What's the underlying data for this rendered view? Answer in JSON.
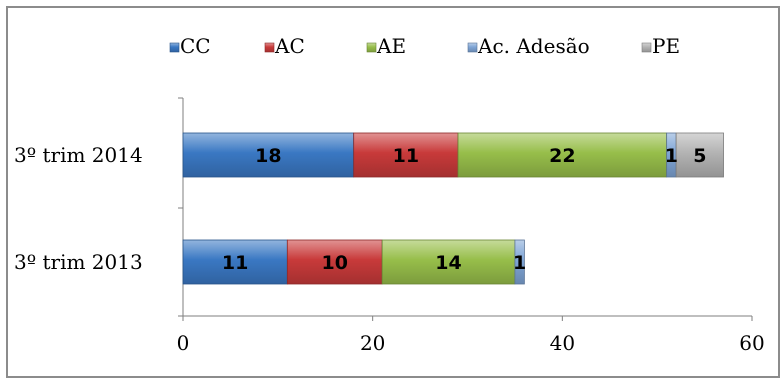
{
  "chart_data": {
    "type": "bar",
    "orientation": "horizontal",
    "stacked": true,
    "categories": [
      "3º trim 2014",
      "3º trim 2013"
    ],
    "series": [
      {
        "name": "CC",
        "color": "#3a78c3",
        "values": [
          18,
          11
        ],
        "labels": [
          "18",
          "11"
        ]
      },
      {
        "name": "AC",
        "color": "#c83a3a",
        "values": [
          11,
          10
        ],
        "labels": [
          "11",
          "10"
        ]
      },
      {
        "name": "AE",
        "color": "#97be4a",
        "values": [
          22,
          14
        ],
        "labels": [
          "22",
          "14"
        ]
      },
      {
        "name": "Ac. Adesão",
        "color": "#7fa5d6",
        "values": [
          1,
          1
        ],
        "labels": [
          "1",
          "1"
        ]
      },
      {
        "name": "PE",
        "color": "#b3b3b3",
        "values": [
          5,
          0
        ],
        "labels": [
          "5",
          ""
        ]
      }
    ],
    "xlim": [
      0,
      60
    ],
    "xticks": [
      "0",
      "20",
      "40",
      "60"
    ],
    "grid": false,
    "legend_position": "top"
  }
}
